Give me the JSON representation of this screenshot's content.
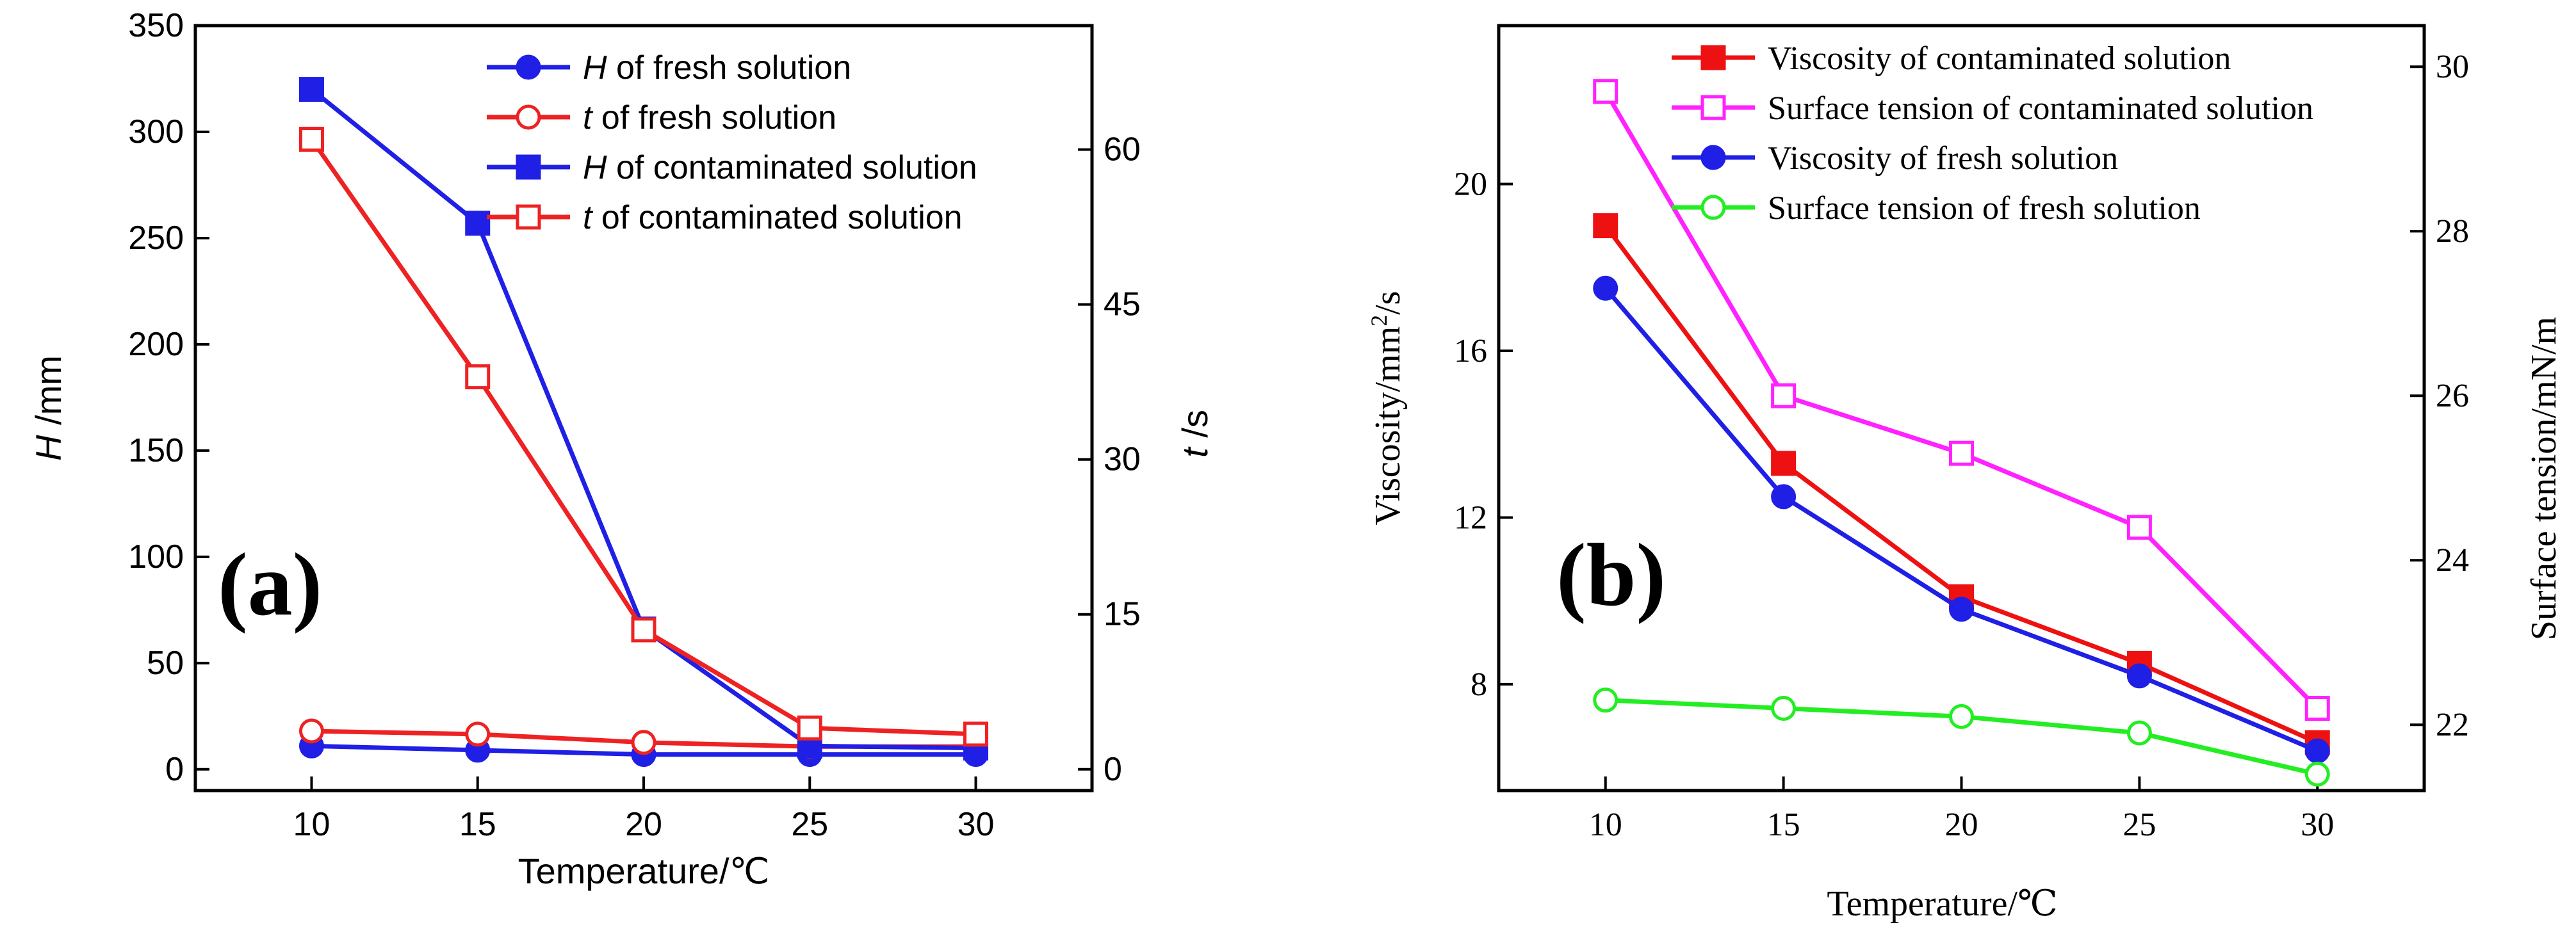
{
  "chart_data": [
    {
      "id": "a",
      "type": "line",
      "panel_label": "(a)",
      "xlabel": "Temperature/℃",
      "ylabel_italic": "H",
      "ylabel_unit": " /mm",
      "y2label_italic": "t",
      "y2label_unit": " /s",
      "x": [
        10,
        15,
        20,
        25,
        30
      ],
      "xlim": [
        6.5,
        33.5
      ],
      "ylim": [
        -10,
        350
      ],
      "y2lim": [
        -2.06,
        72
      ],
      "xticks": [
        "10",
        "15",
        "20",
        "25",
        "30"
      ],
      "yticks": [
        "0",
        "50",
        "100",
        "150",
        "200",
        "250",
        "300",
        "350"
      ],
      "y2ticks": [
        "0",
        "15",
        "30",
        "45",
        "60"
      ],
      "legend_position": "top-right",
      "series": [
        {
          "name_italic": "H",
          "name_rest": " of fresh solution",
          "axis": "left",
          "color": "#1f1fe6",
          "marker": "circle",
          "filled": true,
          "values": [
            11,
            9,
            7,
            7,
            7
          ]
        },
        {
          "name_italic": "t",
          "name_rest": " of fresh solution",
          "axis": "right",
          "color": "#ee2222",
          "marker": "circle",
          "filled": false,
          "values": [
            3.7,
            3.4,
            2.6,
            2.2,
            2.2
          ]
        },
        {
          "name_italic": "H",
          "name_rest": " of contaminated solution",
          "axis": "left",
          "color": "#1f1fe6",
          "marker": "square",
          "filled": true,
          "values": [
            320,
            257,
            66,
            11,
            10
          ]
        },
        {
          "name_italic": "t",
          "name_rest": " of contaminated solution",
          "axis": "right",
          "color": "#ee2222",
          "marker": "square",
          "filled": false,
          "values": [
            61,
            38,
            13.5,
            4.0,
            3.4
          ]
        }
      ]
    },
    {
      "id": "b",
      "type": "line",
      "panel_label": "(b)",
      "xlabel": "Temperature/℃",
      "ylabel_main": "Viscosity/mm",
      "ylabel_sup": "2",
      "ylabel_tail": "/s",
      "y2label": "Surface tension/mN/m",
      "x": [
        10,
        15,
        20,
        25,
        30
      ],
      "xlim": [
        7,
        33
      ],
      "ylim": [
        5.45,
        23.8
      ],
      "y2lim": [
        21.2,
        30.5
      ],
      "xticks": [
        "10",
        "15",
        "20",
        "25",
        "30"
      ],
      "yticks": [
        "8",
        "12",
        "16",
        "20"
      ],
      "y2ticks": [
        "22",
        "24",
        "26",
        "28",
        "30"
      ],
      "legend_position": "top",
      "series": [
        {
          "name": "Viscosity of contaminated solution",
          "axis": "left",
          "color": "#ee1111",
          "marker": "square",
          "filled": true,
          "values": [
            19.0,
            13.3,
            10.1,
            8.5,
            6.6
          ]
        },
        {
          "name": "Surface tension of contaminated solution",
          "axis": "right",
          "color": "#ff22ff",
          "marker": "square",
          "filled": false,
          "values": [
            29.7,
            26.0,
            25.3,
            24.4,
            22.2
          ]
        },
        {
          "name": "Viscosity of fresh solution",
          "axis": "left",
          "color": "#1f1fe6",
          "marker": "circle",
          "filled": true,
          "values": [
            17.5,
            12.5,
            9.8,
            8.2,
            6.4
          ]
        },
        {
          "name": "Surface tension of fresh solution",
          "axis": "right",
          "color": "#22ee22",
          "marker": "circle",
          "filled": false,
          "values": [
            22.3,
            22.2,
            22.1,
            21.9,
            21.4
          ]
        }
      ]
    }
  ]
}
